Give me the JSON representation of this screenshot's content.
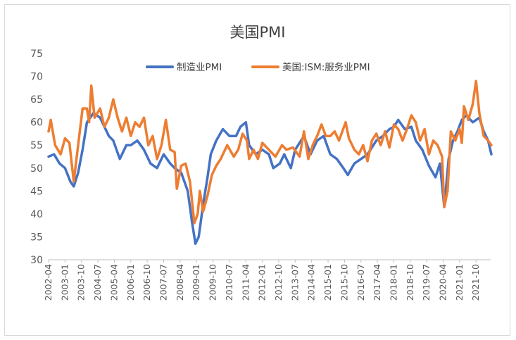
{
  "chart_data": {
    "type": "line",
    "title": "美国PMI",
    "xlabel": "",
    "ylabel": "",
    "ylim": [
      30,
      75
    ],
    "y_ticks": [
      30,
      35,
      40,
      45,
      50,
      55,
      60,
      65,
      70,
      75
    ],
    "x_tick_labels": [
      "2002-04",
      "2003-01",
      "2003-10",
      "2004-07",
      "2005-04",
      "2006-01",
      "2006-10",
      "2007-07",
      "2008-04",
      "2009-01",
      "2009-10",
      "2010-07",
      "2011-04",
      "2012-01",
      "2012-10",
      "2013-07",
      "2014-04",
      "2015-01",
      "2015-10",
      "2016-07",
      "2017-04",
      "2018-01",
      "2018-10",
      "2019-07",
      "2020-04",
      "2021-01",
      "2021-10"
    ],
    "x_start": "2002-04",
    "x_end": "2022-06",
    "grid": false,
    "legend_position": "top",
    "series": [
      {
        "name": "制造业PMI",
        "color": "#4472c4",
        "values": [
          [
            2002.25,
            52.5
          ],
          [
            2002.5,
            53.0
          ],
          [
            2002.75,
            51.0
          ],
          [
            2003.0,
            50.0
          ],
          [
            2003.25,
            47.0
          ],
          [
            2003.4,
            46.0
          ],
          [
            2003.6,
            49.0
          ],
          [
            2003.8,
            54.0
          ],
          [
            2004.0,
            60.0
          ],
          [
            2004.3,
            62.0
          ],
          [
            2004.6,
            61.0
          ],
          [
            2004.8,
            59.0
          ],
          [
            2005.0,
            57.0
          ],
          [
            2005.2,
            56.0
          ],
          [
            2005.5,
            52.0
          ],
          [
            2005.8,
            55.0
          ],
          [
            2006.0,
            55.0
          ],
          [
            2006.3,
            56.0
          ],
          [
            2006.6,
            54.0
          ],
          [
            2006.9,
            51.0
          ],
          [
            2007.2,
            50.0
          ],
          [
            2007.5,
            53.0
          ],
          [
            2007.8,
            51.0
          ],
          [
            2008.0,
            50.0
          ],
          [
            2008.3,
            49.0
          ],
          [
            2008.6,
            45.0
          ],
          [
            2008.8,
            38.0
          ],
          [
            2008.95,
            33.5
          ],
          [
            2009.1,
            35.0
          ],
          [
            2009.3,
            42.0
          ],
          [
            2009.5,
            48.0
          ],
          [
            2009.65,
            53.0
          ],
          [
            2009.9,
            56.0
          ],
          [
            2010.2,
            58.5
          ],
          [
            2010.5,
            57.0
          ],
          [
            2010.8,
            57.0
          ],
          [
            2011.0,
            59.0
          ],
          [
            2011.25,
            60.0
          ],
          [
            2011.4,
            55.0
          ],
          [
            2011.7,
            53.0
          ],
          [
            2012.0,
            54.0
          ],
          [
            2012.3,
            53.0
          ],
          [
            2012.5,
            50.0
          ],
          [
            2012.8,
            51.0
          ],
          [
            2013.0,
            53.0
          ],
          [
            2013.3,
            50.0
          ],
          [
            2013.5,
            54.0
          ],
          [
            2013.9,
            57.0
          ],
          [
            2014.2,
            53.0
          ],
          [
            2014.5,
            56.0
          ],
          [
            2014.8,
            57.0
          ],
          [
            2015.1,
            53.0
          ],
          [
            2015.4,
            52.0
          ],
          [
            2015.7,
            50.0
          ],
          [
            2015.9,
            48.5
          ],
          [
            2016.2,
            51.0
          ],
          [
            2016.5,
            52.0
          ],
          [
            2016.8,
            53.0
          ],
          [
            2017.2,
            56.0
          ],
          [
            2017.5,
            57.0
          ],
          [
            2017.8,
            58.5
          ],
          [
            2018.0,
            59.0
          ],
          [
            2018.2,
            60.5
          ],
          [
            2018.5,
            58.5
          ],
          [
            2018.8,
            59.0
          ],
          [
            2019.0,
            56.0
          ],
          [
            2019.3,
            54.0
          ],
          [
            2019.6,
            50.5
          ],
          [
            2019.9,
            48.0
          ],
          [
            2020.1,
            51.0
          ],
          [
            2020.3,
            41.5
          ],
          [
            2020.5,
            52.0
          ],
          [
            2020.7,
            56.0
          ],
          [
            2020.9,
            58.0
          ],
          [
            2021.1,
            60.5
          ],
          [
            2021.3,
            61.5
          ],
          [
            2021.6,
            60.0
          ],
          [
            2021.9,
            61.0
          ],
          [
            2022.1,
            58.0
          ],
          [
            2022.3,
            56.0
          ],
          [
            2022.45,
            53.0
          ]
        ]
      },
      {
        "name": "美国:ISM:服务业PMI",
        "color": "#ed7d31",
        "values": [
          [
            2002.25,
            58.0
          ],
          [
            2002.35,
            60.5
          ],
          [
            2002.55,
            55.0
          ],
          [
            2002.8,
            53.0
          ],
          [
            2003.0,
            56.5
          ],
          [
            2003.2,
            55.5
          ],
          [
            2003.4,
            47.0
          ],
          [
            2003.6,
            55.0
          ],
          [
            2003.8,
            63.0
          ],
          [
            2004.0,
            63.0
          ],
          [
            2004.1,
            60.0
          ],
          [
            2004.2,
            68.0
          ],
          [
            2004.35,
            61.0
          ],
          [
            2004.6,
            63.0
          ],
          [
            2004.8,
            59.0
          ],
          [
            2005.0,
            61.0
          ],
          [
            2005.2,
            65.0
          ],
          [
            2005.4,
            61.0
          ],
          [
            2005.6,
            58.0
          ],
          [
            2005.8,
            61.0
          ],
          [
            2006.0,
            57.0
          ],
          [
            2006.2,
            60.0
          ],
          [
            2006.4,
            59.0
          ],
          [
            2006.6,
            61.0
          ],
          [
            2006.8,
            55.0
          ],
          [
            2007.0,
            57.0
          ],
          [
            2007.2,
            52.0
          ],
          [
            2007.4,
            55.0
          ],
          [
            2007.6,
            60.5
          ],
          [
            2007.8,
            54.0
          ],
          [
            2008.0,
            53.5
          ],
          [
            2008.1,
            45.5
          ],
          [
            2008.3,
            50.5
          ],
          [
            2008.5,
            51.0
          ],
          [
            2008.7,
            47.0
          ],
          [
            2008.9,
            38.0
          ],
          [
            2009.05,
            40.0
          ],
          [
            2009.15,
            45.0
          ],
          [
            2009.3,
            40.5
          ],
          [
            2009.5,
            44.0
          ],
          [
            2009.7,
            48.5
          ],
          [
            2009.9,
            50.5
          ],
          [
            2010.1,
            52.0
          ],
          [
            2010.4,
            55.0
          ],
          [
            2010.7,
            52.5
          ],
          [
            2010.9,
            54.0
          ],
          [
            2011.1,
            57.5
          ],
          [
            2011.3,
            56.0
          ],
          [
            2011.4,
            52.0
          ],
          [
            2011.6,
            54.0
          ],
          [
            2011.8,
            52.0
          ],
          [
            2012.0,
            55.5
          ],
          [
            2012.3,
            54.0
          ],
          [
            2012.6,
            52.5
          ],
          [
            2012.9,
            55.0
          ],
          [
            2013.1,
            54.0
          ],
          [
            2013.4,
            54.5
          ],
          [
            2013.7,
            52.5
          ],
          [
            2013.9,
            58.0
          ],
          [
            2014.1,
            52.0
          ],
          [
            2014.3,
            55.0
          ],
          [
            2014.5,
            57.0
          ],
          [
            2014.7,
            59.5
          ],
          [
            2014.9,
            57.0
          ],
          [
            2015.1,
            57.0
          ],
          [
            2015.3,
            58.0
          ],
          [
            2015.5,
            56.0
          ],
          [
            2015.8,
            60.0
          ],
          [
            2015.95,
            56.5
          ],
          [
            2016.2,
            54.0
          ],
          [
            2016.4,
            53.0
          ],
          [
            2016.6,
            55.0
          ],
          [
            2016.8,
            51.5
          ],
          [
            2017.0,
            56.0
          ],
          [
            2017.2,
            57.5
          ],
          [
            2017.4,
            55.0
          ],
          [
            2017.6,
            58.0
          ],
          [
            2017.8,
            54.5
          ],
          [
            2018.0,
            59.5
          ],
          [
            2018.2,
            58.5
          ],
          [
            2018.4,
            56.0
          ],
          [
            2018.6,
            58.5
          ],
          [
            2018.8,
            61.5
          ],
          [
            2019.0,
            60.0
          ],
          [
            2019.2,
            56.0
          ],
          [
            2019.4,
            58.5
          ],
          [
            2019.6,
            53.0
          ],
          [
            2019.8,
            56.0
          ],
          [
            2020.0,
            55.0
          ],
          [
            2020.2,
            52.5
          ],
          [
            2020.3,
            41.5
          ],
          [
            2020.45,
            45.0
          ],
          [
            2020.6,
            58.0
          ],
          [
            2020.8,
            56.0
          ],
          [
            2021.0,
            58.5
          ],
          [
            2021.1,
            55.5
          ],
          [
            2021.2,
            63.5
          ],
          [
            2021.4,
            60.5
          ],
          [
            2021.6,
            64.0
          ],
          [
            2021.75,
            69.0
          ],
          [
            2021.9,
            62.0
          ],
          [
            2022.1,
            57.0
          ],
          [
            2022.3,
            56.0
          ],
          [
            2022.45,
            55.0
          ]
        ]
      }
    ]
  }
}
